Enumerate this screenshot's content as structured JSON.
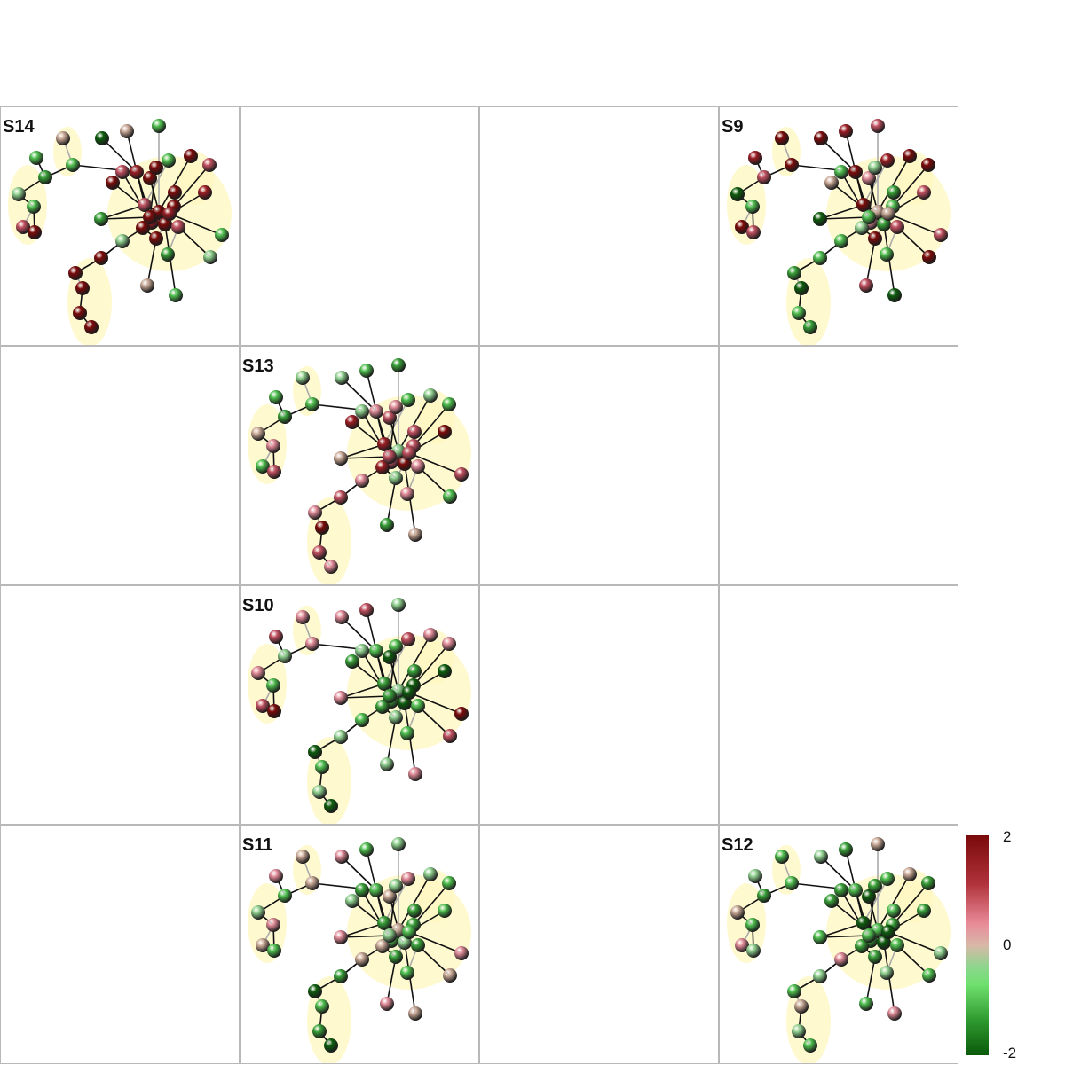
{
  "colorscale": {
    "min_label": "2",
    "mid_label": "0",
    "max_label": "-2",
    "high_color": "#7a0a0a",
    "mid_color": "#d8b8a8",
    "low_color": "#0a5a0a"
  },
  "panels": [
    {
      "row": 0,
      "col": 0,
      "label": "S14",
      "theme": "red-core"
    },
    {
      "row": 0,
      "col": 3,
      "label": "S9",
      "theme": "mixed-red"
    },
    {
      "row": 1,
      "col": 1,
      "label": "S13",
      "theme": "pink-core"
    },
    {
      "row": 2,
      "col": 1,
      "label": "S10",
      "theme": "green-core"
    },
    {
      "row": 3,
      "col": 1,
      "label": "S11",
      "theme": "green-core-pale"
    },
    {
      "row": 3,
      "col": 3,
      "label": "S12",
      "theme": "green-all"
    }
  ]
}
